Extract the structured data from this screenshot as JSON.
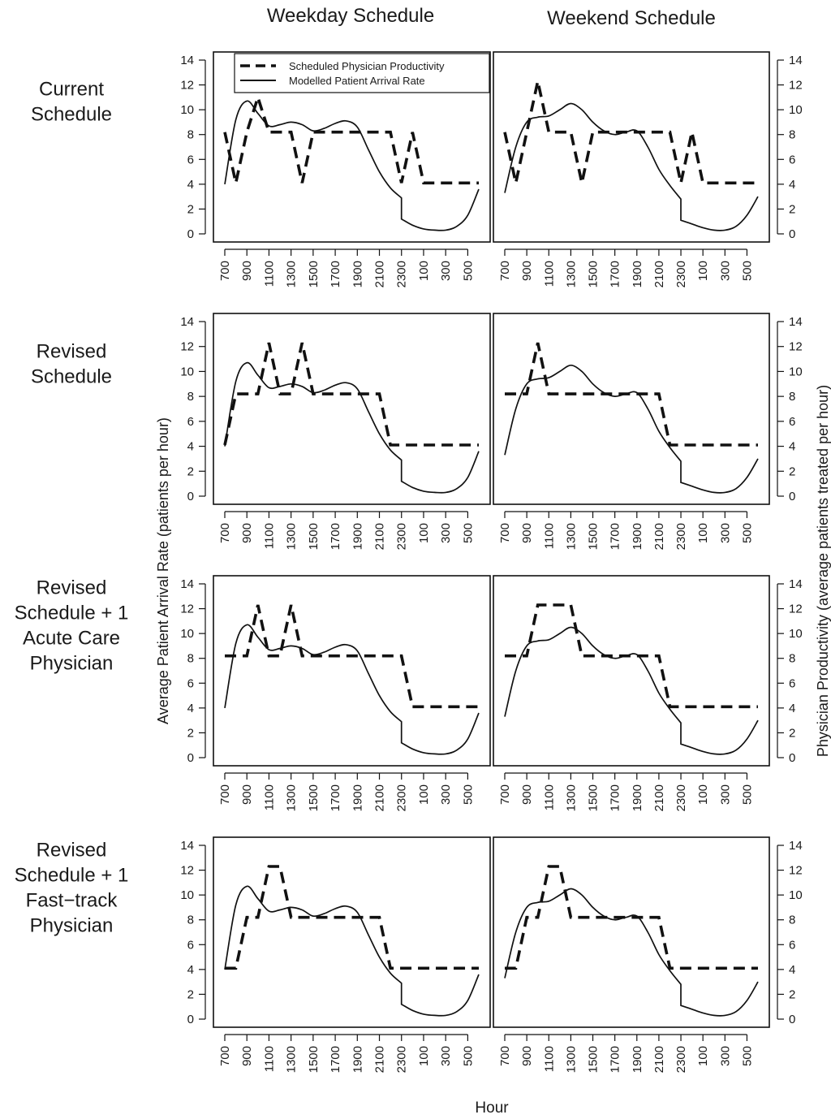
{
  "figure": {
    "columns": [
      "Weekday Schedule",
      "Weekend Schedule"
    ],
    "rows": [
      [
        "Current",
        "Schedule"
      ],
      [
        "Revised",
        "Schedule"
      ],
      [
        "Revised",
        "Schedule + 1",
        "Acute Care",
        "Physician"
      ],
      [
        "Revised",
        "Schedule + 1",
        "Fast−track",
        "Physician"
      ]
    ],
    "ylabel_left": "Average Patient Arrival Rate (patients per hour)",
    "ylabel_right": "Physician Productivity (average patients treated per hour)",
    "xlabel": "Hour",
    "legend": [
      "Scheduled Physician Productivity",
      "Modelled Patient Arrival Rate"
    ]
  },
  "chart_data": {
    "type": "line",
    "x_tick_labels": [
      "700",
      "900",
      "1100",
      "1300",
      "1500",
      "1700",
      "1900",
      "2100",
      "2300",
      "100",
      "300",
      "500"
    ],
    "y_ticks": [
      0,
      2,
      4,
      6,
      8,
      10,
      12,
      14
    ],
    "ylim": [
      0,
      14
    ],
    "legend_position": "top-left",
    "arrival": {
      "weekday": {
        "x": [
          "700",
          "800",
          "900",
          "1000",
          "1100",
          "1200",
          "1300",
          "1400",
          "1500",
          "1600",
          "1700",
          "1800",
          "1900",
          "2000",
          "2100",
          "2200",
          "2300",
          "2300",
          "2400",
          "100",
          "200",
          "300",
          "400",
          "500",
          "600"
        ],
        "y": [
          4.0,
          9.2,
          10.7,
          9.7,
          8.7,
          8.8,
          9.0,
          8.8,
          8.3,
          8.5,
          8.9,
          9.1,
          8.6,
          6.8,
          5.0,
          3.7,
          2.9,
          1.2,
          0.7,
          0.4,
          0.3,
          0.3,
          0.6,
          1.5,
          3.6
        ]
      },
      "weekend": {
        "x": [
          "700",
          "800",
          "900",
          "1000",
          "1100",
          "1200",
          "1300",
          "1400",
          "1500",
          "1600",
          "1700",
          "1800",
          "1900",
          "2000",
          "2100",
          "2200",
          "2300",
          "2300",
          "2400",
          "100",
          "200",
          "300",
          "400",
          "500",
          "600"
        ],
        "y": [
          3.3,
          7.0,
          9.0,
          9.4,
          9.5,
          10.0,
          10.5,
          10.0,
          9.0,
          8.3,
          8.0,
          8.2,
          8.3,
          7.0,
          5.2,
          3.9,
          2.8,
          1.1,
          0.8,
          0.5,
          0.3,
          0.3,
          0.6,
          1.5,
          3.0
        ]
      }
    },
    "panels": [
      {
        "row": "Current Schedule",
        "weekday": {
          "x": [
            "700",
            "800",
            "900",
            "1000",
            "1100",
            "1200",
            "1300",
            "1400",
            "1500",
            "1600",
            "1700",
            "1800",
            "1900",
            "2000",
            "2100",
            "2200",
            "2300",
            "2400",
            "100",
            "200",
            "300",
            "400",
            "500",
            "600"
          ],
          "y": [
            8.2,
            4.1,
            8.2,
            11.0,
            8.2,
            8.2,
            8.2,
            4.1,
            8.2,
            8.2,
            8.2,
            8.2,
            8.2,
            8.2,
            8.2,
            8.2,
            4.1,
            8.2,
            4.1,
            4.1,
            4.1,
            4.1,
            4.1,
            4.1
          ]
        },
        "weekend": {
          "x": [
            "700",
            "800",
            "900",
            "1000",
            "1100",
            "1200",
            "1300",
            "1400",
            "1500",
            "1600",
            "1700",
            "1800",
            "1900",
            "2000",
            "2100",
            "2200",
            "2300",
            "2400",
            "100",
            "200",
            "300",
            "400",
            "500",
            "600"
          ],
          "y": [
            8.2,
            4.1,
            8.2,
            12.3,
            8.2,
            8.2,
            8.2,
            4.1,
            8.2,
            8.2,
            8.2,
            8.2,
            8.2,
            8.2,
            8.2,
            8.2,
            4.1,
            8.2,
            4.1,
            4.1,
            4.1,
            4.1,
            4.1,
            4.1
          ]
        }
      },
      {
        "row": "Revised Schedule",
        "weekday": {
          "x": [
            "700",
            "800",
            "900",
            "1000",
            "1100",
            "1200",
            "1300",
            "1400",
            "1500",
            "1600",
            "1700",
            "1800",
            "1900",
            "2000",
            "2100",
            "2200",
            "2300",
            "2400",
            "100",
            "200",
            "300",
            "400",
            "500",
            "600"
          ],
          "y": [
            4.1,
            8.2,
            8.2,
            8.2,
            12.3,
            8.2,
            8.2,
            12.3,
            8.2,
            8.2,
            8.2,
            8.2,
            8.2,
            8.2,
            8.2,
            4.1,
            4.1,
            4.1,
            4.1,
            4.1,
            4.1,
            4.1,
            4.1,
            4.1
          ]
        },
        "weekend": {
          "x": [
            "700",
            "800",
            "900",
            "1000",
            "1100",
            "1200",
            "1300",
            "1400",
            "1500",
            "1600",
            "1700",
            "1800",
            "1900",
            "2000",
            "2100",
            "2200",
            "2300",
            "2400",
            "100",
            "200",
            "300",
            "400",
            "500",
            "600"
          ],
          "y": [
            8.2,
            8.2,
            8.2,
            12.3,
            8.2,
            8.2,
            8.2,
            8.2,
            8.2,
            8.2,
            8.2,
            8.2,
            8.2,
            8.2,
            8.2,
            4.1,
            4.1,
            4.1,
            4.1,
            4.1,
            4.1,
            4.1,
            4.1,
            4.1
          ]
        }
      },
      {
        "row": "Revised Schedule + 1 Acute Care Physician",
        "weekday": {
          "x": [
            "700",
            "800",
            "900",
            "1000",
            "1100",
            "1200",
            "1300",
            "1400",
            "1500",
            "1600",
            "1700",
            "1800",
            "1900",
            "2000",
            "2100",
            "2200",
            "2300",
            "2400",
            "100",
            "200",
            "300",
            "400",
            "500",
            "600"
          ],
          "y": [
            8.2,
            8.2,
            8.2,
            12.3,
            8.2,
            8.2,
            12.3,
            8.2,
            8.2,
            8.2,
            8.2,
            8.2,
            8.2,
            8.2,
            8.2,
            8.2,
            8.2,
            4.1,
            4.1,
            4.1,
            4.1,
            4.1,
            4.1,
            4.1
          ]
        },
        "weekend": {
          "x": [
            "700",
            "800",
            "900",
            "1000",
            "1100",
            "1200",
            "1300",
            "1400",
            "1500",
            "1600",
            "1700",
            "1800",
            "1900",
            "2000",
            "2100",
            "2200",
            "2300",
            "2400",
            "100",
            "200",
            "300",
            "400",
            "500",
            "600"
          ],
          "y": [
            8.2,
            8.2,
            8.2,
            12.3,
            12.3,
            12.3,
            12.3,
            8.2,
            8.2,
            8.2,
            8.2,
            8.2,
            8.2,
            8.2,
            8.2,
            4.1,
            4.1,
            4.1,
            4.1,
            4.1,
            4.1,
            4.1,
            4.1,
            4.1
          ]
        }
      },
      {
        "row": "Revised Schedule + 1 Fast-track Physician",
        "weekday": {
          "x": [
            "700",
            "800",
            "900",
            "1000",
            "1100",
            "1200",
            "1300",
            "1400",
            "1500",
            "1600",
            "1700",
            "1800",
            "1900",
            "2000",
            "2100",
            "2200",
            "2300",
            "2400",
            "100",
            "200",
            "300",
            "400",
            "500",
            "600"
          ],
          "y": [
            4.1,
            4.1,
            8.2,
            8.2,
            12.3,
            12.3,
            8.2,
            8.2,
            8.2,
            8.2,
            8.2,
            8.2,
            8.2,
            8.2,
            8.2,
            4.1,
            4.1,
            4.1,
            4.1,
            4.1,
            4.1,
            4.1,
            4.1,
            4.1
          ]
        },
        "weekend": {
          "x": [
            "700",
            "800",
            "900",
            "1000",
            "1100",
            "1200",
            "1300",
            "1400",
            "1500",
            "1600",
            "1700",
            "1800",
            "1900",
            "2000",
            "2100",
            "2200",
            "2300",
            "2400",
            "100",
            "200",
            "300",
            "400",
            "500",
            "600"
          ],
          "y": [
            4.1,
            4.1,
            8.2,
            8.2,
            12.3,
            12.3,
            8.2,
            8.2,
            8.2,
            8.2,
            8.2,
            8.2,
            8.2,
            8.2,
            8.2,
            4.1,
            4.1,
            4.1,
            4.1,
            4.1,
            4.1,
            4.1,
            4.1,
            4.1
          ]
        }
      }
    ]
  }
}
